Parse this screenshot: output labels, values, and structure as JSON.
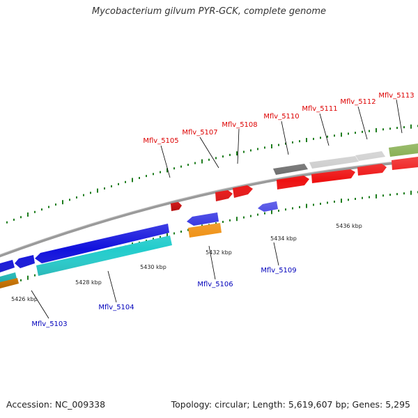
{
  "title": "Mycobacterium gilvum PYR-GCK, complete genome",
  "footer": {
    "accession": "Accession: NC_009338",
    "summary": "Topology: circular; Length: 5,619,607 bp; Genes: 5,295"
  },
  "colors": {
    "backbone": "#8c8c8c",
    "tick": "#1e7d1e",
    "label_forward": "#dd0000",
    "label_reverse": "#0000bb",
    "leader": "#000000",
    "coordinate_text": "#222222"
  },
  "coordinates": [
    "5426 kbp",
    "5428 kbp",
    "5430 kbp",
    "5432 kbp",
    "5434 kbp",
    "5436 kbp"
  ],
  "gene_labels_forward": [
    "Mflv_5105",
    "Mflv_5107",
    "Mflv_5108",
    "Mflv_5110",
    "Mflv_5111",
    "Mflv_5112",
    "Mflv_5113"
  ],
  "gene_labels_reverse": [
    "Mflv_5103",
    "Mflv_5104",
    "Mflv_5106",
    "Mflv_5109"
  ],
  "feature_colors": {
    "cds": "#ee1111",
    "cds_reverse": "#1111dd",
    "rrna": "#22cccc",
    "trna": "#ee8800",
    "pseudo_dark": "#666666",
    "pseudo_light": "#c8c8c8",
    "other": "#669922"
  }
}
